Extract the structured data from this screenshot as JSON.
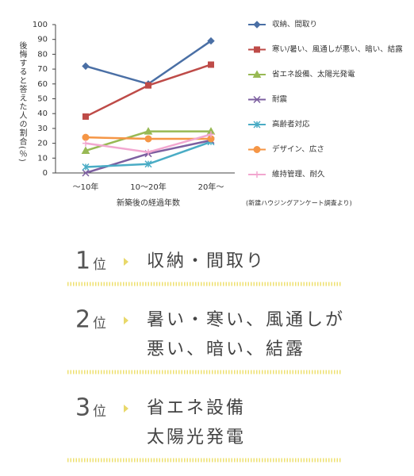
{
  "chart_data": {
    "type": "line",
    "y_label": "後悔すると答えた人の割合(％)",
    "x_label": "新築後の経過年数",
    "source": "(新建ハウジングアンケート調査より)",
    "categories": [
      "～10年",
      "10～20年",
      "20年～"
    ],
    "ylim": [
      0,
      100
    ],
    "yticks": [
      0,
      10,
      20,
      30,
      40,
      50,
      60,
      70,
      80,
      90,
      100
    ],
    "grid": false,
    "series": [
      {
        "name": "収納、間取り",
        "color": "#4a6fa5",
        "marker": "diamond",
        "values": [
          72,
          60,
          89
        ]
      },
      {
        "name": "寒い/暑い、風通しが悪い、暗い、結露",
        "color": "#be4b48",
        "marker": "square",
        "values": [
          38,
          59,
          73
        ]
      },
      {
        "name": "省エネ設備、太陽光発電",
        "color": "#98b954",
        "marker": "triangle",
        "values": [
          15,
          28,
          28
        ]
      },
      {
        "name": "耐震",
        "color": "#7d5fa0",
        "marker": "x",
        "values": [
          0,
          13,
          22
        ]
      },
      {
        "name": "高齢者対応",
        "color": "#4aacc5",
        "marker": "star",
        "values": [
          4,
          6,
          21
        ]
      },
      {
        "name": "デザイン、広さ",
        "color": "#f59646",
        "marker": "circle",
        "values": [
          24,
          23,
          23
        ]
      },
      {
        "name": "維持管理、耐久",
        "color": "#f2a7d0",
        "marker": "plus",
        "values": [
          20,
          14,
          26
        ]
      }
    ]
  },
  "ranking": [
    {
      "rank": 1,
      "suffix": "位",
      "lines": [
        "収納・間取り"
      ]
    },
    {
      "rank": 2,
      "suffix": "位",
      "lines": [
        "暑い・寒い、風通しが",
        "悪い、暗い、結露"
      ]
    },
    {
      "rank": 3,
      "suffix": "位",
      "lines": [
        "省エネ設備",
        "太陽光発電"
      ]
    }
  ]
}
